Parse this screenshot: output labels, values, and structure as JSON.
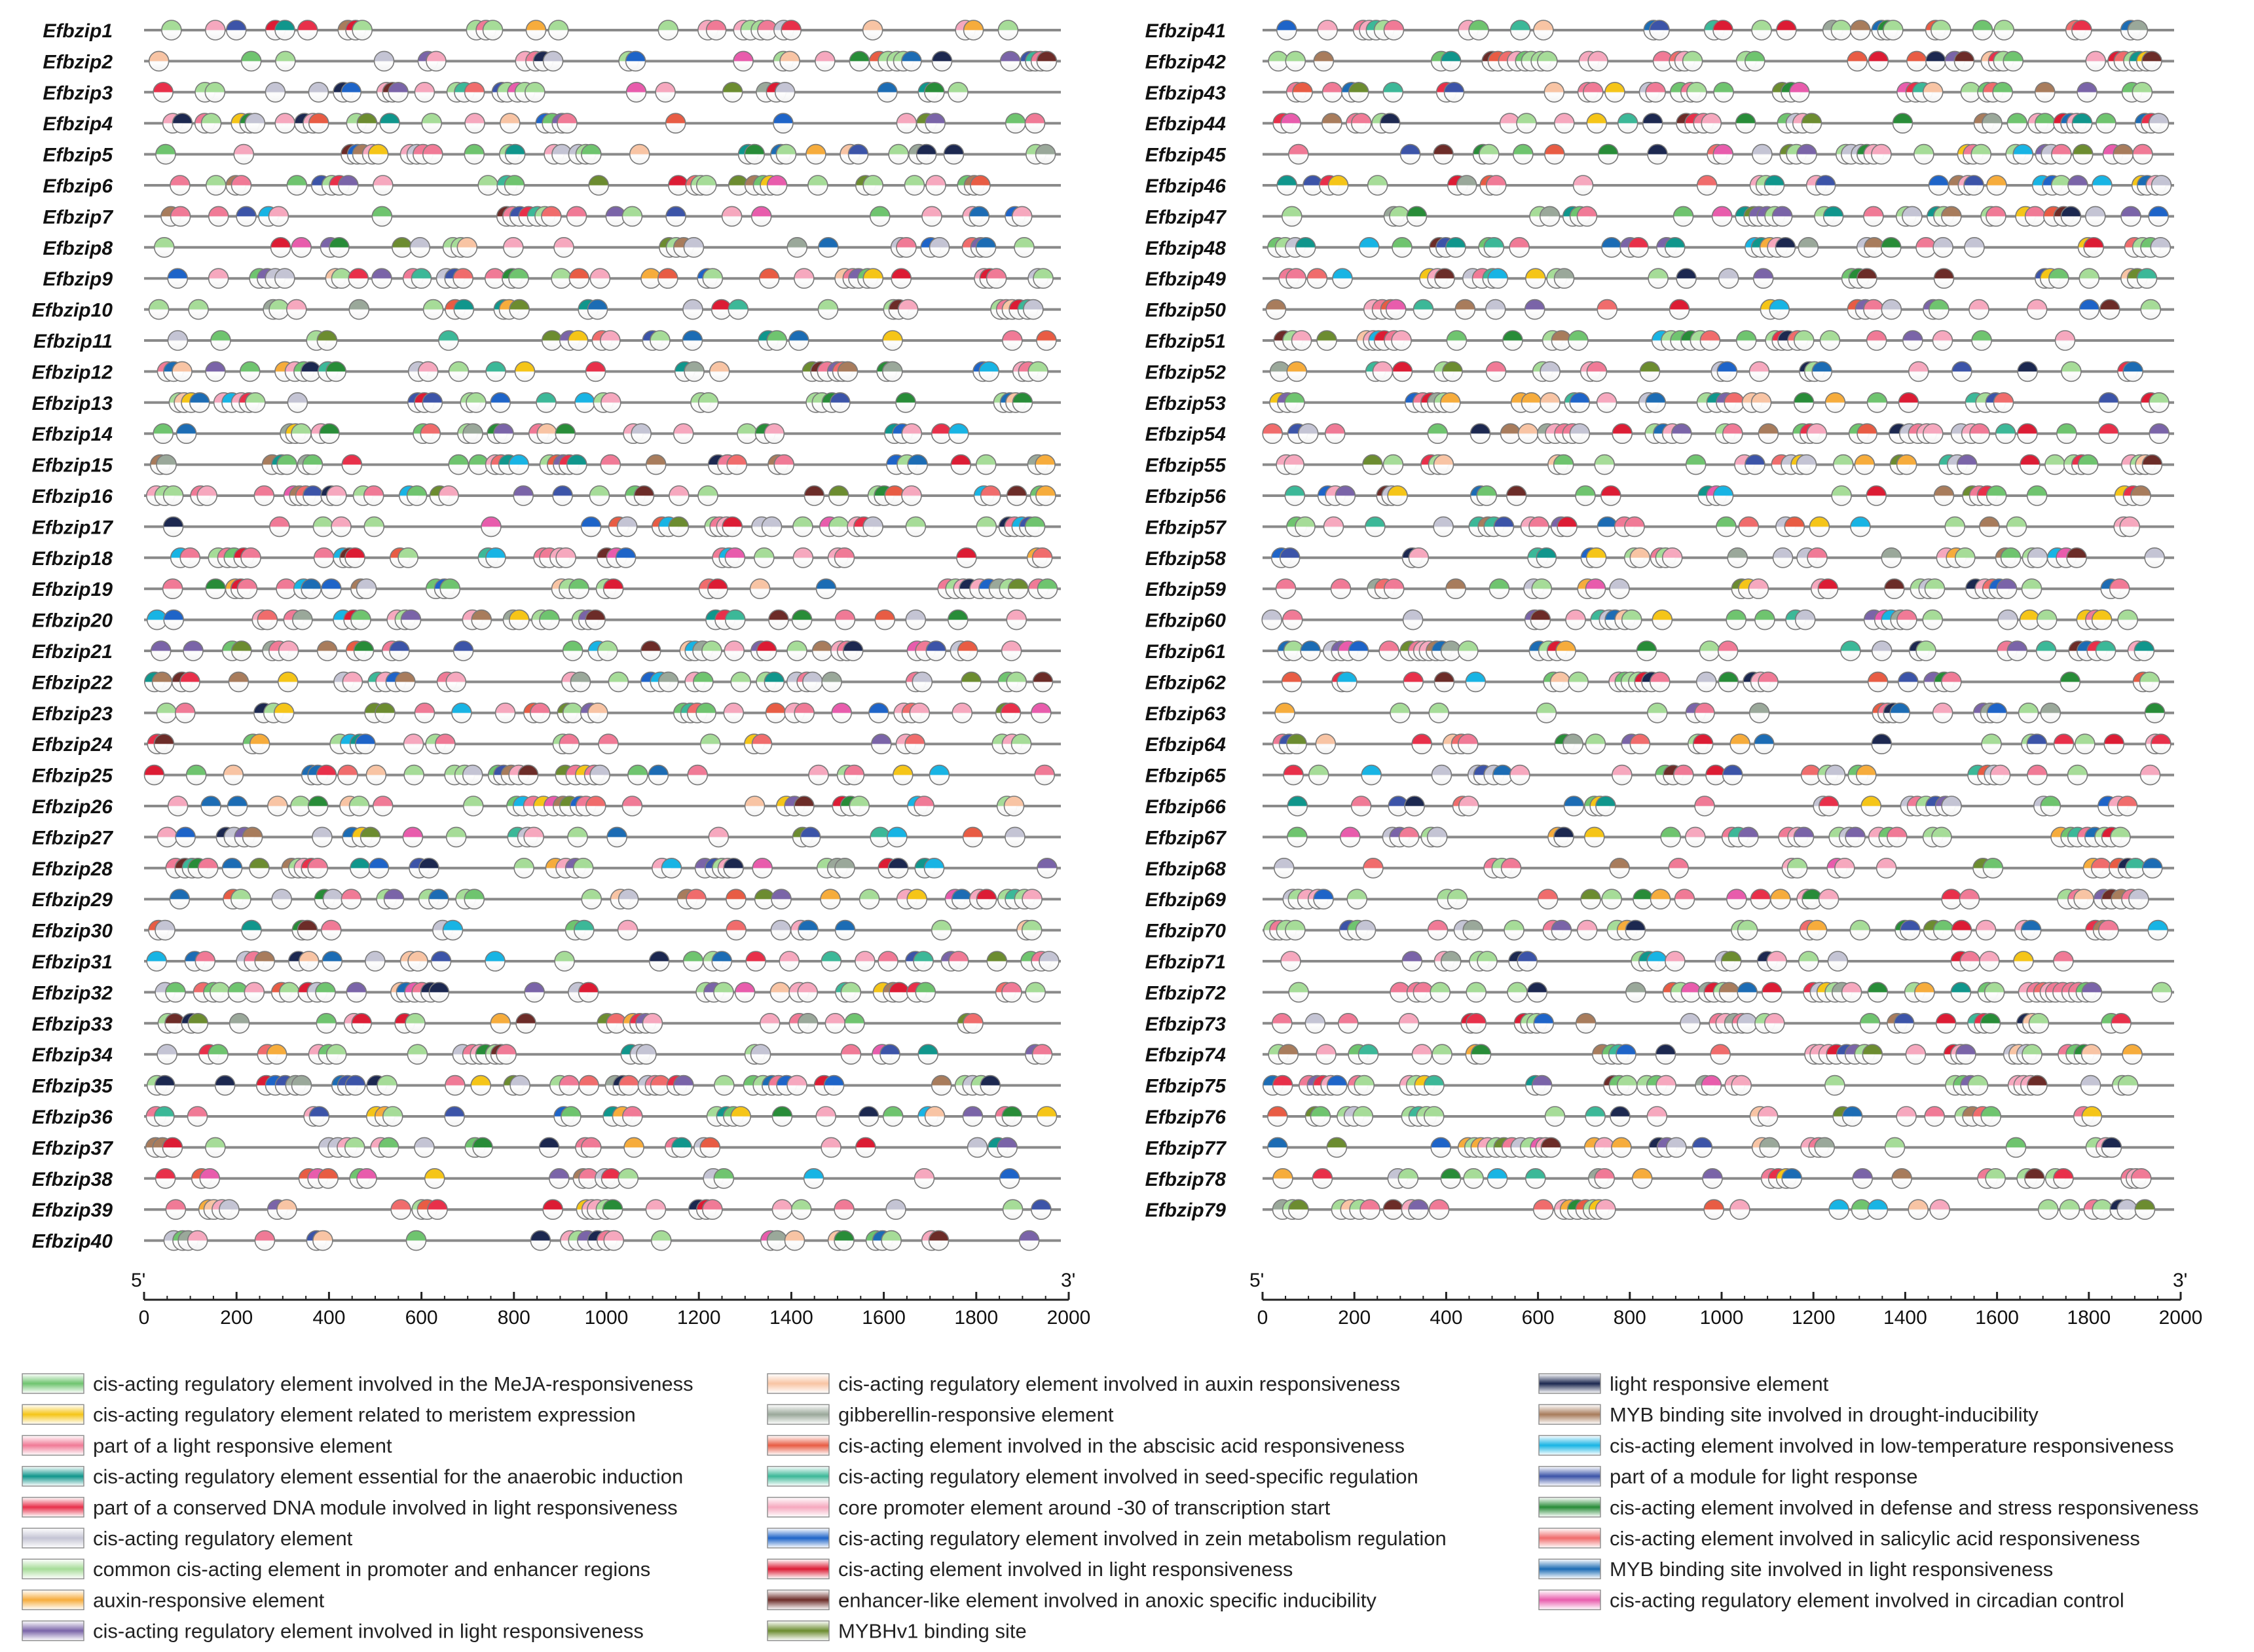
{
  "figure": {
    "axis_ticks": [
      0,
      200,
      400,
      600,
      800,
      1000,
      1200,
      1400,
      1600,
      1800,
      2000
    ],
    "axis_start_label": "5'",
    "axis_end_label": "3'",
    "panels": [
      {
        "name": "left",
        "genes": [
          "Efbzip1",
          "Efbzip2",
          "Efbzip3",
          "Efbzip4",
          "Efbzip5",
          "Efbzip6",
          "Efbzip7",
          "Efbzip8",
          "Efbzip9",
          "Efbzip10",
          "Efbzip11",
          "Efbzip12",
          "Efbzip13",
          "Efbzip14",
          "Efbzip15",
          "Efbzip16",
          "Efbzip17",
          "Efbzip18",
          "Efbzip19",
          "Efbzip20",
          "Efbzip21",
          "Efbzip22",
          "Efbzip23",
          "Efbzip24",
          "Efbzip25",
          "Efbzip26",
          "Efbzip27",
          "Efbzip28",
          "Efbzip29",
          "Efbzip30",
          "Efbzip31",
          "Efbzip32",
          "Efbzip33",
          "Efbzip34",
          "Efbzip35",
          "Efbzip36",
          "Efbzip37",
          "Efbzip38",
          "Efbzip39",
          "Efbzip40"
        ]
      },
      {
        "name": "right",
        "genes": [
          "Efbzip41",
          "Efbzip42",
          "Efbzip43",
          "Efbzip44",
          "Efbzip45",
          "Efbzip46",
          "Efbzip47",
          "Efbzip48",
          "Efbzip49",
          "Efbzip50",
          "Efbzip51",
          "Efbzip52",
          "Efbzip53",
          "Efbzip54",
          "Efbzip55",
          "Efbzip56",
          "Efbzip57",
          "Efbzip58",
          "Efbzip59",
          "Efbzip60",
          "Efbzip61",
          "Efbzip62",
          "Efbzip63",
          "Efbzip64",
          "Efbzip65",
          "Efbzip66",
          "Efbzip67",
          "Efbzip68",
          "Efbzip69",
          "Efbzip70",
          "Efbzip71",
          "Efbzip72",
          "Efbzip73",
          "Efbzip74",
          "Efbzip75",
          "Efbzip76",
          "Efbzip77",
          "Efbzip78",
          "Efbzip79"
        ]
      }
    ]
  },
  "legend": [
    [
      {
        "label": "cis-acting regulatory element involved in the MeJA-responsiveness",
        "color": "#6fc46f"
      },
      {
        "label": "cis-acting regulatory element related to meristem expression",
        "color": "#f5c518"
      },
      {
        "label": "part of a light responsive element",
        "color": "#f07a96"
      },
      {
        "label": "cis-acting regulatory element essential for the anaerobic induction",
        "color": "#10968c"
      },
      {
        "label": "part of a conserved DNA module involved in light responsiveness",
        "color": "#e8304a"
      },
      {
        "label": "cis-acting regulatory element",
        "color": "#c4c4d4"
      },
      {
        "label": "common cis-acting element in promoter and enhancer regions",
        "color": "#a6dc98"
      },
      {
        "label": "auxin-responsive element",
        "color": "#f6ac3c"
      },
      {
        "label": "cis-acting regulatory element involved in light responsiveness",
        "color": "#7a64a8"
      }
    ],
    [
      {
        "label": "cis-acting regulatory element involved in auxin responsiveness",
        "color": "#f8c4a4"
      },
      {
        "label": "gibberellin-responsive element",
        "color": "#9aa89a"
      },
      {
        "label": "cis-acting element involved in the abscisic acid responsiveness",
        "color": "#e85c44"
      },
      {
        "label": "cis-acting regulatory element involved in seed-specific regulation",
        "color": "#3cb898"
      },
      {
        "label": "core promoter element around -30 of transcription start",
        "color": "#f6a8be"
      },
      {
        "label": "cis-acting regulatory element involved in zein metabolism regulation",
        "color": "#1e64c8"
      },
      {
        "label": "cis-acting element involved in light responsiveness",
        "color": "#dc1c34"
      },
      {
        "label": "enhancer-like element involved in anoxic specific inducibility",
        "color": "#6c2c28"
      },
      {
        "label": "MYBHv1 binding site",
        "color": "#6c8c30"
      }
    ],
    [
      {
        "label": "light responsive element",
        "color": "#1c2850"
      },
      {
        "label": "MYB binding site involved in drought-inducibility",
        "color": "#a87c5c"
      },
      {
        "label": "cis-acting element involved in low-temperature responsiveness",
        "color": "#18b4e4"
      },
      {
        "label": "part of a module for light response",
        "color": "#3c54a8"
      },
      {
        "label": "cis-acting element involved in defense and stress responsiveness",
        "color": "#288c38"
      },
      {
        "label": "cis-acting element involved in salicylic acid responsiveness",
        "color": "#f06c6c"
      },
      {
        "label": "MYB binding site involved in light responsiveness",
        "color": "#1c6cb4"
      },
      {
        "label": "cis-acting regulatory element involved in circadian control",
        "color": "#e85cac"
      }
    ]
  ]
}
